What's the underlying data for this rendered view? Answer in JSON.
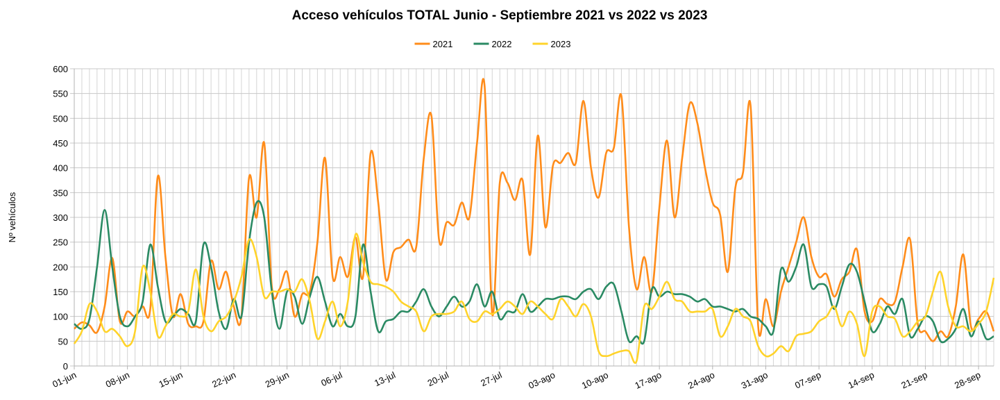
{
  "chart_data": {
    "type": "line",
    "title": "Acceso vehículos TOTAL  Junio - Septiembre 2021 vs 2022 vs 2023",
    "y_label": "Nº vehículos",
    "categories": [
      "01-jun",
      null,
      null,
      null,
      null,
      null,
      null,
      "08-jun",
      null,
      null,
      null,
      null,
      null,
      null,
      "15-jun",
      null,
      null,
      null,
      null,
      null,
      null,
      "22-jun",
      null,
      null,
      null,
      null,
      null,
      null,
      "29-jun",
      null,
      null,
      null,
      null,
      null,
      null,
      "06-jul",
      null,
      null,
      null,
      null,
      null,
      null,
      "13-jul",
      null,
      null,
      null,
      null,
      null,
      null,
      "20-jul",
      null,
      null,
      null,
      null,
      null,
      null,
      "27-jul",
      null,
      null,
      null,
      null,
      null,
      null,
      "03-ago",
      null,
      null,
      null,
      null,
      null,
      null,
      "10-ago",
      null,
      null,
      null,
      null,
      null,
      null,
      "17-ago",
      null,
      null,
      null,
      null,
      null,
      null,
      "24-ago",
      null,
      null,
      null,
      null,
      null,
      null,
      "31-ago",
      null,
      null,
      null,
      null,
      null,
      null,
      "07-sep",
      null,
      null,
      null,
      null,
      null,
      null,
      "14-sep",
      null,
      null,
      null,
      null,
      null,
      null,
      "21-sep",
      null,
      null,
      null,
      null,
      null,
      null,
      "28-sep",
      null,
      null
    ],
    "series": [
      {
        "name": "2021",
        "color": "#ff8c1a",
        "values": [
          75,
          88,
          82,
          68,
          120,
          218,
          90,
          110,
          100,
          120,
          115,
          383,
          220,
          100,
          145,
          85,
          80,
          90,
          212,
          155,
          190,
          120,
          100,
          380,
          300,
          450,
          160,
          155,
          190,
          100,
          145,
          150,
          250,
          420,
          180,
          220,
          180,
          260,
          180,
          430,
          330,
          175,
          230,
          240,
          255,
          240,
          420,
          505,
          255,
          290,
          285,
          330,
          300,
          450,
          565,
          105,
          370,
          370,
          335,
          375,
          225,
          465,
          280,
          405,
          410,
          430,
          410,
          535,
          400,
          340,
          430,
          440,
          545,
          280,
          155,
          220,
          150,
          320,
          455,
          300,
          420,
          530,
          490,
          400,
          330,
          305,
          190,
          360,
          390,
          525,
          80,
          135,
          80,
          150,
          200,
          250,
          300,
          220,
          180,
          185,
          140,
          175,
          190,
          235,
          110,
          90,
          135,
          125,
          130,
          200,
          255,
          85,
          70,
          50,
          70,
          60,
          120,
          225,
          80,
          95,
          110,
          70
        ]
      },
      {
        "name": "2022",
        "color": "#2a8a63",
        "values": [
          85,
          75,
          95,
          200,
          315,
          200,
          100,
          80,
          100,
          130,
          245,
          160,
          90,
          100,
          115,
          105,
          90,
          245,
          200,
          110,
          75,
          135,
          100,
          250,
          330,
          300,
          150,
          75,
          150,
          140,
          85,
          140,
          180,
          130,
          80,
          105,
          80,
          100,
          245,
          150,
          70,
          90,
          95,
          110,
          110,
          130,
          155,
          120,
          100,
          120,
          140,
          120,
          130,
          165,
          120,
          150,
          95,
          110,
          110,
          145,
          110,
          120,
          135,
          135,
          140,
          140,
          135,
          150,
          155,
          135,
          160,
          165,
          110,
          50,
          60,
          50,
          155,
          140,
          150,
          145,
          145,
          140,
          130,
          135,
          120,
          120,
          115,
          110,
          115,
          100,
          95,
          80,
          70,
          195,
          170,
          200,
          245,
          160,
          165,
          160,
          115,
          160,
          205,
          190,
          130,
          70,
          85,
          120,
          105,
          135,
          60,
          75,
          100,
          90,
          50,
          55,
          75,
          115,
          60,
          90,
          55,
          60
        ]
      },
      {
        "name": "2023",
        "color": "#ffd32a",
        "values": [
          45,
          70,
          125,
          110,
          70,
          75,
          60,
          40,
          70,
          200,
          150,
          60,
          80,
          105,
          100,
          110,
          195,
          100,
          70,
          90,
          100,
          130,
          180,
          255,
          220,
          140,
          150,
          150,
          155,
          150,
          175,
          130,
          55,
          90,
          130,
          80,
          130,
          265,
          210,
          170,
          165,
          160,
          150,
          130,
          120,
          110,
          70,
          100,
          105,
          105,
          110,
          130,
          95,
          90,
          110,
          105,
          115,
          130,
          120,
          105,
          130,
          120,
          105,
          95,
          135,
          120,
          100,
          125,
          100,
          30,
          20,
          25,
          30,
          30,
          10,
          120,
          115,
          140,
          170,
          135,
          130,
          110,
          110,
          110,
          115,
          60,
          80,
          115,
          100,
          90,
          40,
          20,
          25,
          40,
          30,
          60,
          65,
          70,
          90,
          100,
          120,
          80,
          110,
          85,
          20,
          110,
          120,
          100,
          95,
          60,
          70,
          90,
          100,
          150,
          190,
          120,
          80,
          80,
          70,
          85,
          110,
          178
        ]
      }
    ],
    "ylim": [
      0,
      600
    ],
    "yticks": [
      0,
      50,
      100,
      150,
      200,
      250,
      300,
      350,
      400,
      450,
      500,
      550,
      600
    ],
    "grid": true,
    "legend": "top"
  }
}
